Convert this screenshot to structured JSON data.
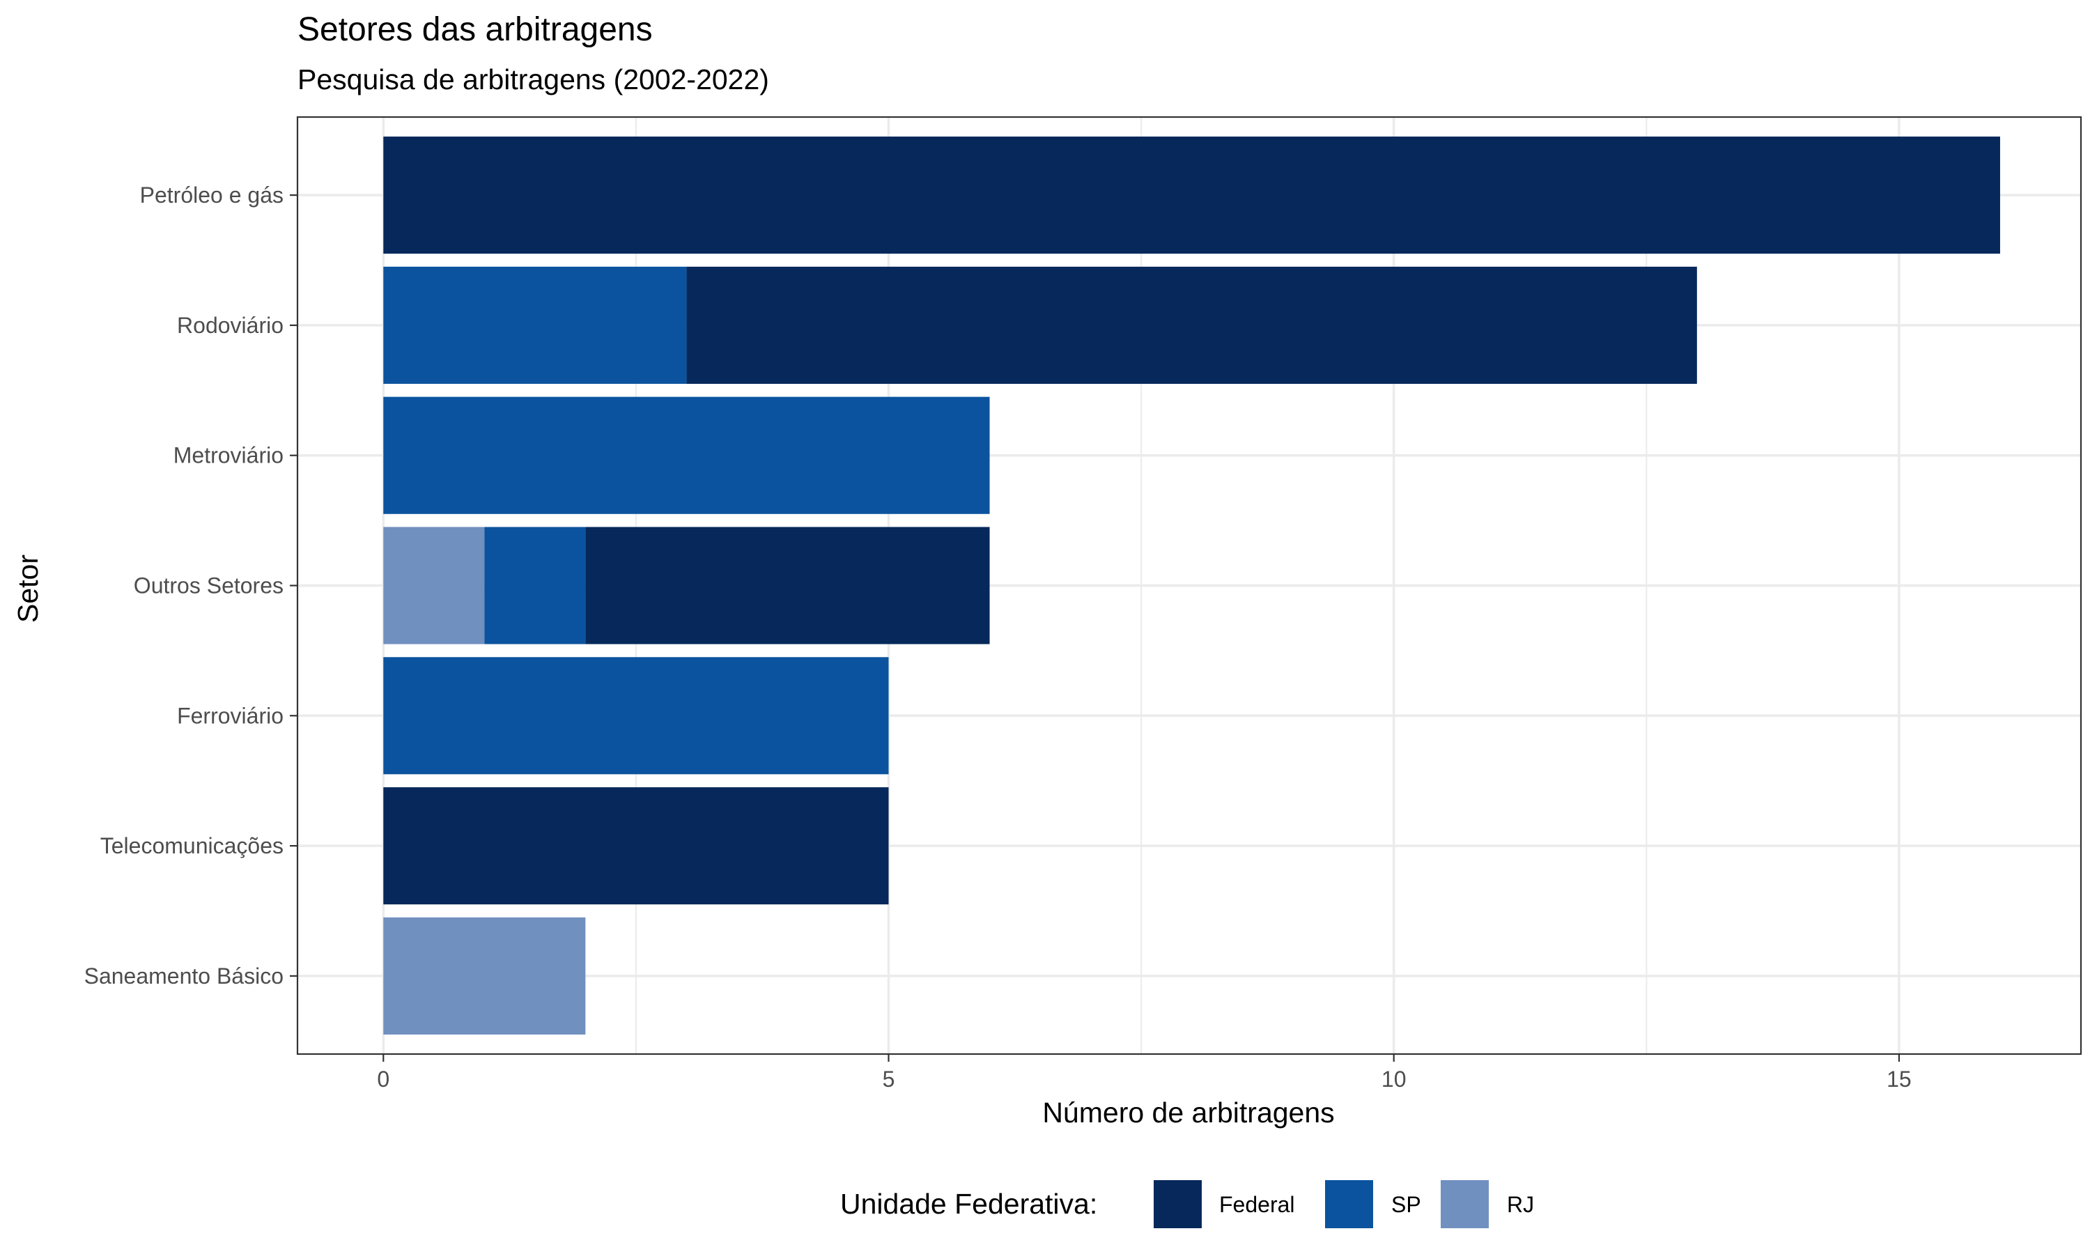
{
  "chart_data": {
    "type": "bar",
    "orientation": "horizontal",
    "stacked": true,
    "title": "Setores das arbitragens",
    "subtitle": "Pesquisa de arbitragens (2002-2022)",
    "xlabel": "Número de arbitragens",
    "ylabel": "Setor",
    "xlim": [
      -0.85,
      16.8
    ],
    "xticks": [
      0,
      5,
      10,
      15
    ],
    "grid": true,
    "legend_position": "bottom",
    "categories": [
      "Petróleo e gás",
      "Rodoviário",
      "Metroviário",
      "Outros Setores",
      "Ferroviário",
      "Telecomunicações",
      "Saneamento Básico"
    ],
    "legend": {
      "title": "Unidade Federativa:",
      "entries": [
        "Federal",
        "SP",
        "RJ"
      ]
    },
    "series": [
      {
        "name": "RJ",
        "color": "#7090bf",
        "values": [
          0,
          0,
          0,
          1,
          0,
          0,
          2
        ]
      },
      {
        "name": "SP",
        "color": "#0b539e",
        "values": [
          0,
          3,
          6,
          1,
          5,
          0,
          0
        ]
      },
      {
        "name": "Federal",
        "color": "#06285b",
        "values": [
          16,
          10,
          0,
          4,
          0,
          5,
          0
        ]
      }
    ]
  }
}
